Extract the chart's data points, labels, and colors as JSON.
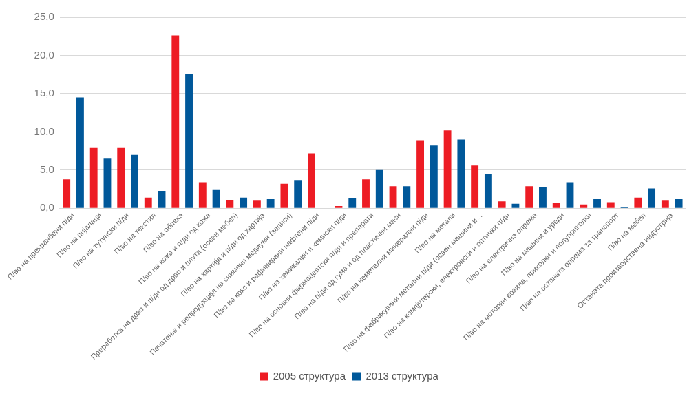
{
  "chart_data": {
    "type": "bar",
    "categories": [
      "П/во на прехранбени п/ди",
      "П/во на пијалаци",
      "П/во на тутунски п/ди",
      "П/во на текстил",
      "П/во на облека",
      "П/во на кожа и п/ди од кожа",
      "Преработка на дрво и п/ди од дрво и плута (освен мебел)",
      "П/во на хартија и п/ди од хартија",
      "Печатење и репродукција на снимени медиуми (записи)",
      "П/во на кокс и рафинирани нафтени п/ди",
      "П/во на хемикалии и хемиски п/ди",
      "П/во на основни фармацевтски п/ди и препарати",
      "П/во на п/ди од гума и од пластични маси",
      "П/во на неметални минерални п/ди",
      "П/во на метали",
      "П/во на фабрикувани метални п/ди (освен машини и…",
      "П/во на компјутерски, електронски и оптички п/ди",
      "П/во на електрична опрема",
      "П/во на машини и уреди",
      "П/во на моторни возила, приколки и полуприколки",
      "П/во на останата опрема за транспорт",
      "П/во на мебел",
      "Останата производствена индустрија"
    ],
    "series": [
      {
        "name": "2005 структура",
        "color": "#ed1c24",
        "values": [
          3.8,
          7.9,
          7.9,
          1.4,
          22.6,
          3.4,
          1.1,
          1.0,
          3.2,
          7.2,
          0.3,
          3.8,
          2.9,
          8.9,
          10.2,
          5.6,
          0.9,
          2.9,
          0.7,
          0.5,
          0.8,
          1.4,
          1.0
        ]
      },
      {
        "name": "2013 структура",
        "color": "#00589a",
        "values": [
          14.5,
          6.5,
          7.0,
          2.2,
          17.6,
          2.4,
          1.4,
          1.2,
          3.6,
          null,
          1.3,
          5.0,
          2.9,
          8.2,
          9.0,
          4.5,
          0.6,
          2.8,
          3.4,
          1.2,
          0.2,
          2.6,
          1.2
        ]
      }
    ],
    "ylim": [
      0,
      25
    ],
    "yticks": [
      {
        "value": 0,
        "label": "0,0"
      },
      {
        "value": 5,
        "label": "5,0"
      },
      {
        "value": 10,
        "label": "10,0"
      },
      {
        "value": 15,
        "label": "15,0"
      },
      {
        "value": 20,
        "label": "20,0"
      },
      {
        "value": 25,
        "label": "25,0"
      }
    ],
    "grid": "y",
    "legend": "bottom"
  }
}
